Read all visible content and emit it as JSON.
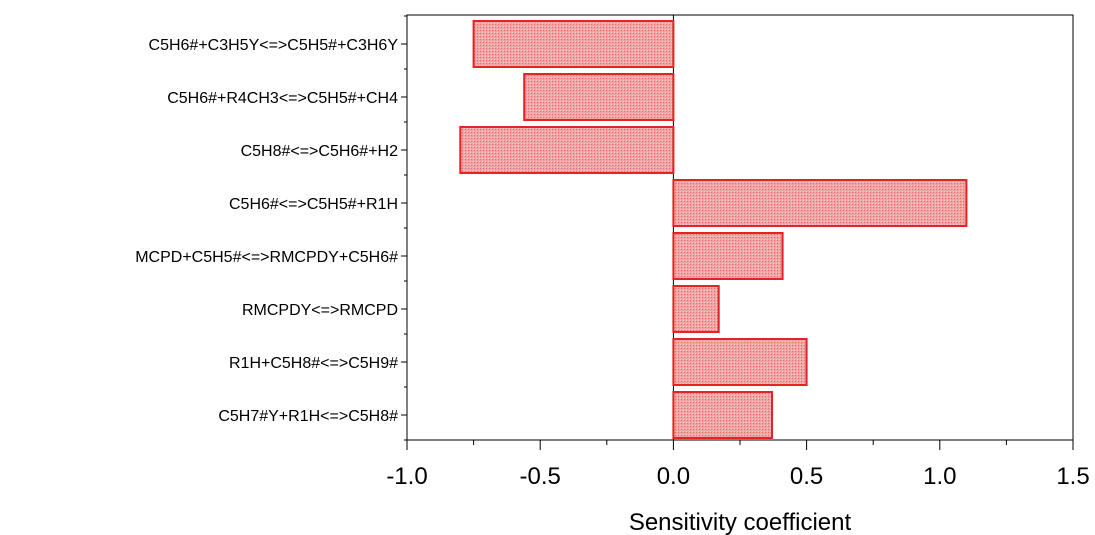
{
  "chart_data": {
    "type": "bar",
    "orientation": "horizontal",
    "categories": [
      "C5H6#+C3H5Y<=>C5H5#+C3H6Y",
      "C5H6#+R4CH3<=>C5H5#+CH4",
      "C5H8#<=>C5H6#+H2",
      "C5H6#<=>C5H5#+R1H",
      "MCPD+C5H5#<=>RMCPDY+C5H6#",
      "RMCPDY<=>RMCPD",
      "R1H+C5H8#<=>C5H9#",
      "C5H7#Y+R1H<=>C5H8#"
    ],
    "values": [
      -0.75,
      -0.56,
      -0.8,
      1.1,
      0.41,
      0.17,
      0.5,
      0.37
    ],
    "xlabel": "Sensitivity coefficient",
    "ylabel": "",
    "title": "",
    "xlim": [
      -1.0,
      1.5
    ],
    "xticks": [
      "-1.0",
      "-0.5",
      "0.0",
      "0.5",
      "1.0",
      "1.5"
    ],
    "xtick_values": [
      -1.0,
      -0.5,
      0.0,
      0.5,
      1.0,
      1.5
    ],
    "grid": false,
    "bar_fill": "#f4a7a7",
    "bar_stroke": "#e32424",
    "bar_pattern": "hatched"
  }
}
